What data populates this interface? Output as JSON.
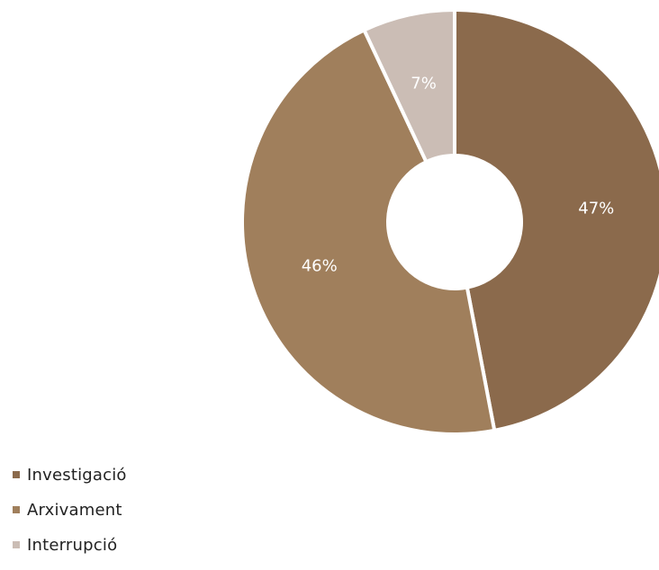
{
  "chart_data": {
    "type": "pie",
    "variant": "donut",
    "slices": [
      {
        "label": "Investigació",
        "value": 47,
        "display": "47%",
        "color": "#8b6a4c"
      },
      {
        "label": "Arxivament",
        "value": 46,
        "display": "46%",
        "color": "#a07f5c"
      },
      {
        "label": "Interrupció",
        "value": 7,
        "display": "7%",
        "color": "#cbbdb5"
      }
    ],
    "legend_position": "bottom-left"
  }
}
